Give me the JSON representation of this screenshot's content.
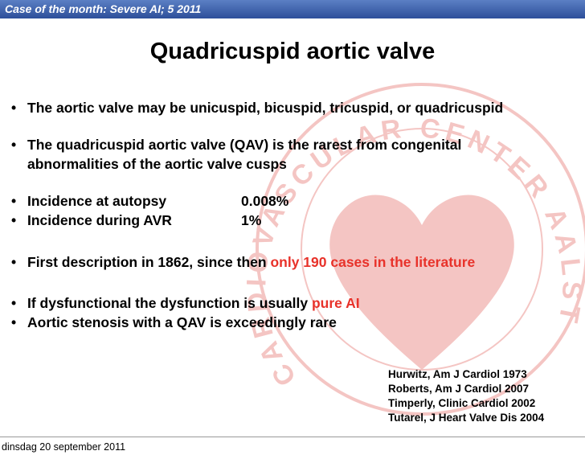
{
  "header": {
    "text": "Case of the month: Severe AI; 5 2011"
  },
  "title": "Quadricuspid aortic valve",
  "watermark": "CARDIOVASCULAR CENTER AALST",
  "bullets": [
    [
      "The aortic valve may be unicuspid, bicuspid, tricuspid, or quadricuspid"
    ],
    [
      "The quadricuspid aortic valve (QAV) is the rarest from congenital",
      "abnormalities of the aortic valve cusps"
    ],
    {
      "label": "Incidence at autopsy",
      "value": "0.008%"
    },
    {
      "label": "Incidence during AVR",
      "value": "1%"
    },
    [
      "First description in 1862, since then ",
      "only 190 cases in the literature"
    ],
    [
      "If dysfunctional the dysfunction is usually ",
      "pure AI"
    ],
    [
      "Aortic stenosis with a QAV is exceedingly rare"
    ]
  ],
  "references": [
    "Hurwitz, Am J Cardiol 1973",
    "Roberts, Am J Cardiol 2007",
    "Timperly, Clinic Cardiol 2002",
    "Tutarel, J Heart Valve Dis 2004"
  ],
  "footer": "dinsdag 20 september 2011"
}
